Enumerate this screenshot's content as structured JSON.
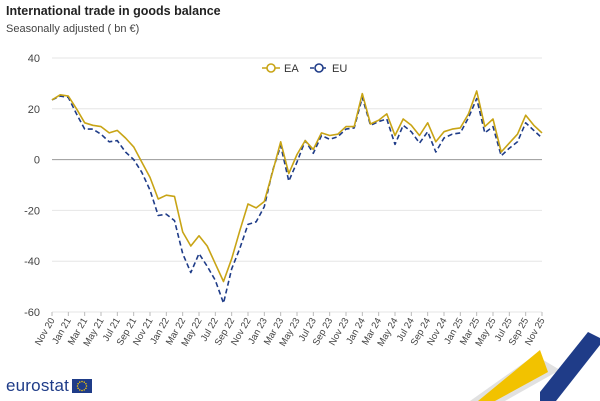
{
  "chart_data": {
    "type": "line",
    "title": "International trade in goods balance",
    "subtitle": "Seasonally adjusted ( bn €)",
    "ylim": [
      -60,
      40
    ],
    "yticks": [
      40,
      20,
      0,
      -20,
      -40,
      -60
    ],
    "grid": true,
    "legend_position": "top-center",
    "x_tick_labels": [
      "Nov 20",
      "Jan 21",
      "Mar 21",
      "May 21",
      "Jul 21",
      "Sep 21",
      "Nov 21",
      "Jan 22",
      "Mar 22",
      "May 22",
      "Jul 22",
      "Sep 22",
      "Nov 22",
      "Jan 23",
      "Mar 23",
      "May 23",
      "Jul 23",
      "Sep 23",
      "Nov 23",
      "Jan 24",
      "Mar 24",
      "May 24",
      "Jul 24",
      "Sep 24",
      "Nov 24",
      "Jan 25",
      "Mar 25",
      "May 25",
      "Jul 25",
      "Sep 25",
      "Nov 25"
    ],
    "x": [
      "Nov 20",
      "Dec 20",
      "Jan 21",
      "Feb 21",
      "Mar 21",
      "Apr 21",
      "May 21",
      "Jun 21",
      "Jul 21",
      "Aug 21",
      "Sep 21",
      "Oct 21",
      "Nov 21",
      "Dec 21",
      "Jan 22",
      "Feb 22",
      "Mar 22",
      "Apr 22",
      "May 22",
      "Jun 22",
      "Jul 22",
      "Aug 22",
      "Sep 22",
      "Oct 22",
      "Nov 22",
      "Dec 22",
      "Jan 23",
      "Feb 23",
      "Mar 23",
      "Apr 23",
      "May 23",
      "Jun 23",
      "Jul 23",
      "Aug 23",
      "Sep 23",
      "Oct 23",
      "Nov 23",
      "Dec 23",
      "Jan 24",
      "Feb 24",
      "Mar 24",
      "Apr 24",
      "May 24",
      "Jun 24",
      "Jul 24",
      "Aug 24",
      "Sep 24",
      "Oct 24",
      "Nov 24",
      "Dec 24",
      "Jan 25",
      "Feb 25",
      "Mar 25",
      "Apr 25",
      "May 25",
      "Jun 25",
      "Jul 25",
      "Aug 25",
      "Sep 25",
      "Oct 25",
      "Nov 25"
    ],
    "series": [
      {
        "name": "EA",
        "color": "#c8a415",
        "style": "solid",
        "values": [
          23.5,
          25.5,
          25,
          20,
          14.5,
          13.5,
          13,
          10.5,
          11.5,
          8.5,
          5,
          -1,
          -7,
          -15.5,
          -14,
          -14.5,
          -28.5,
          -34,
          -30,
          -34,
          -41,
          -48,
          -39,
          -28,
          -17.5,
          -19,
          -16.5,
          -5,
          7,
          -5.5,
          2,
          7.5,
          4,
          10.5,
          9.5,
          10,
          13,
          13,
          26,
          14,
          15.5,
          18,
          9.5,
          16,
          13.5,
          9.5,
          14.5,
          7,
          11,
          12,
          12.5,
          18,
          27,
          13,
          16,
          3,
          6.5,
          10,
          17.5,
          13.5,
          10.5
        ]
      },
      {
        "name": "EU",
        "color": "#1f3c88",
        "style": "dashed",
        "values": [
          23.5,
          25,
          24.5,
          18,
          12,
          12,
          10,
          7,
          7.5,
          3,
          0,
          -5,
          -12,
          -22,
          -21.5,
          -24,
          -37,
          -44.5,
          -37,
          -42,
          -47.5,
          -56.5,
          -43,
          -35,
          -25.5,
          -24.5,
          -18.5,
          -4.5,
          5.5,
          -8.5,
          -1,
          7.5,
          2.5,
          9.5,
          8,
          9,
          12,
          12.5,
          24.5,
          13.5,
          15,
          16,
          6,
          13.5,
          11,
          6.5,
          11,
          3,
          8.5,
          10,
          10.5,
          16.5,
          24,
          10.5,
          13,
          1.5,
          4.5,
          7,
          14.5,
          11.5,
          8.5
        ]
      }
    ]
  },
  "branding": {
    "logo_text": "eurostat",
    "flag_color": "#1f3c88",
    "flag_star_color": "#ffcc00"
  },
  "decoration": {
    "corner_colors": [
      "#f2c200",
      "#1f3c88",
      "#c8c8c8"
    ]
  }
}
